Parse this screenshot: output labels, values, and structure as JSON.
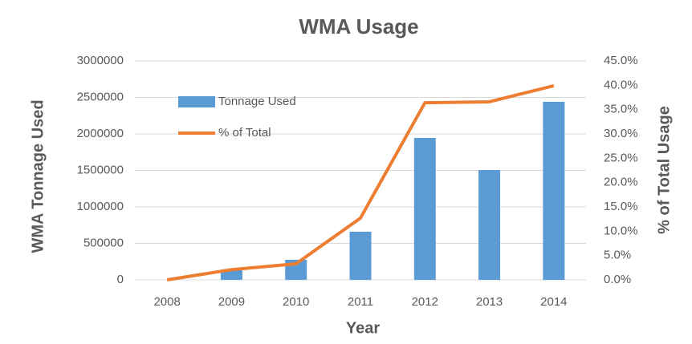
{
  "chart_data": {
    "type": "bar",
    "title": "WMA Usage",
    "x_label": "Year",
    "y_label": "WMA Tonnage Used",
    "y2_label": "% of Total Usage",
    "categories": [
      "2008",
      "2009",
      "2010",
      "2011",
      "2012",
      "2013",
      "2014"
    ],
    "series": [
      {
        "name": "Tonnage Used",
        "type": "bar",
        "color": "#5b9bd5",
        "values": [
          0,
          140000,
          275000,
          660000,
          1945000,
          1505000,
          2440000
        ]
      },
      {
        "name": "% of Total",
        "type": "line",
        "axis": "y2",
        "color": "#ed7d31",
        "values": [
          0,
          2.1,
          3.3,
          12.7,
          36.4,
          36.6,
          39.9
        ]
      }
    ],
    "ylim": [
      0,
      3000000
    ],
    "yticks": [
      0,
      500000,
      1000000,
      1500000,
      2000000,
      2500000,
      3000000
    ],
    "y2lim": [
      0,
      45
    ],
    "y2ticks": [
      {
        "value": 0,
        "label": "0.0%"
      },
      {
        "value": 5,
        "label": "5.0%"
      },
      {
        "value": 10,
        "label": "10.0%"
      },
      {
        "value": 15,
        "label": "15.0%"
      },
      {
        "value": 20,
        "label": "20.0%"
      },
      {
        "value": 25,
        "label": "25.0%"
      },
      {
        "value": 30,
        "label": "30.0%"
      },
      {
        "value": 35,
        "label": "35.0%"
      },
      {
        "value": 40,
        "label": "40.0%"
      },
      {
        "value": 45,
        "label": "45.0%"
      }
    ],
    "grid": true,
    "legend": "top-left"
  }
}
